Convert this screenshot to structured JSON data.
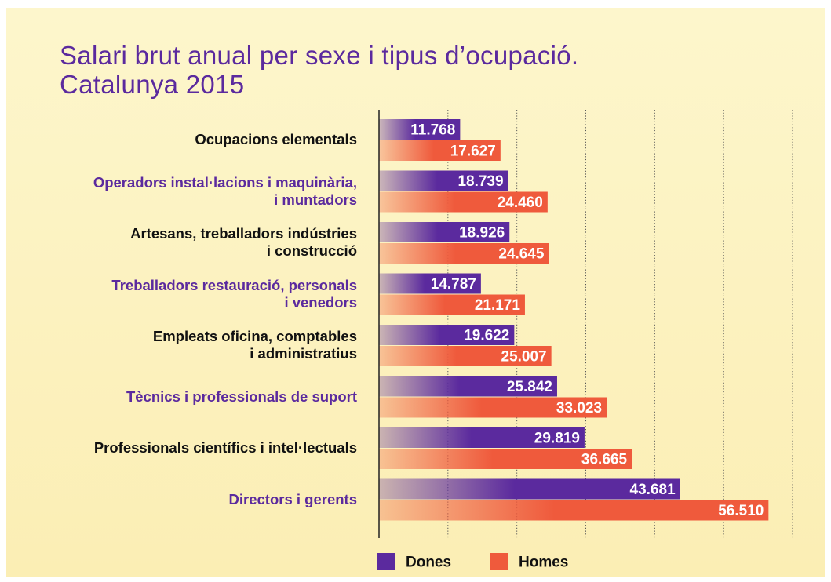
{
  "chart_data": {
    "type": "hbar",
    "title": "Salari brut anual per sexe i tipus d’ocupació.\nCatalunya 2015",
    "categories": [
      "Ocupacions elementals",
      "Operadors instal·lacions i maquinària,\ni muntadors",
      "Artesans, treballadors indústries\ni construcció",
      "Treballadors restauració, personals\ni venedors",
      "Empleats oficina, comptables\ni administratius",
      "Tècnics i professionals de suport",
      "Professionals científics i intel·lectuals",
      "Directors i gerents"
    ],
    "series": [
      {
        "name": "Dones",
        "color": "#5b2a9e",
        "values": [
          11768,
          18739,
          18926,
          14787,
          19622,
          25842,
          29819,
          43681
        ],
        "value_labels": [
          "11.768",
          "18.739",
          "18.926",
          "14.787",
          "19.622",
          "25.842",
          "29.819",
          "43.681"
        ]
      },
      {
        "name": "Homes",
        "color": "#ef5a3c",
        "values": [
          17627,
          24460,
          24645,
          21171,
          25007,
          33023,
          36665,
          56510
        ],
        "value_labels": [
          "17.627",
          "24.460",
          "24.645",
          "21.171",
          "25.007",
          "33.023",
          "36.665",
          "56.510"
        ]
      }
    ],
    "xlim": [
      0,
      60000
    ],
    "xticks": [
      0,
      10000,
      20000,
      30000,
      40000,
      50000,
      60000
    ],
    "grid": true,
    "legend": "bottom"
  }
}
